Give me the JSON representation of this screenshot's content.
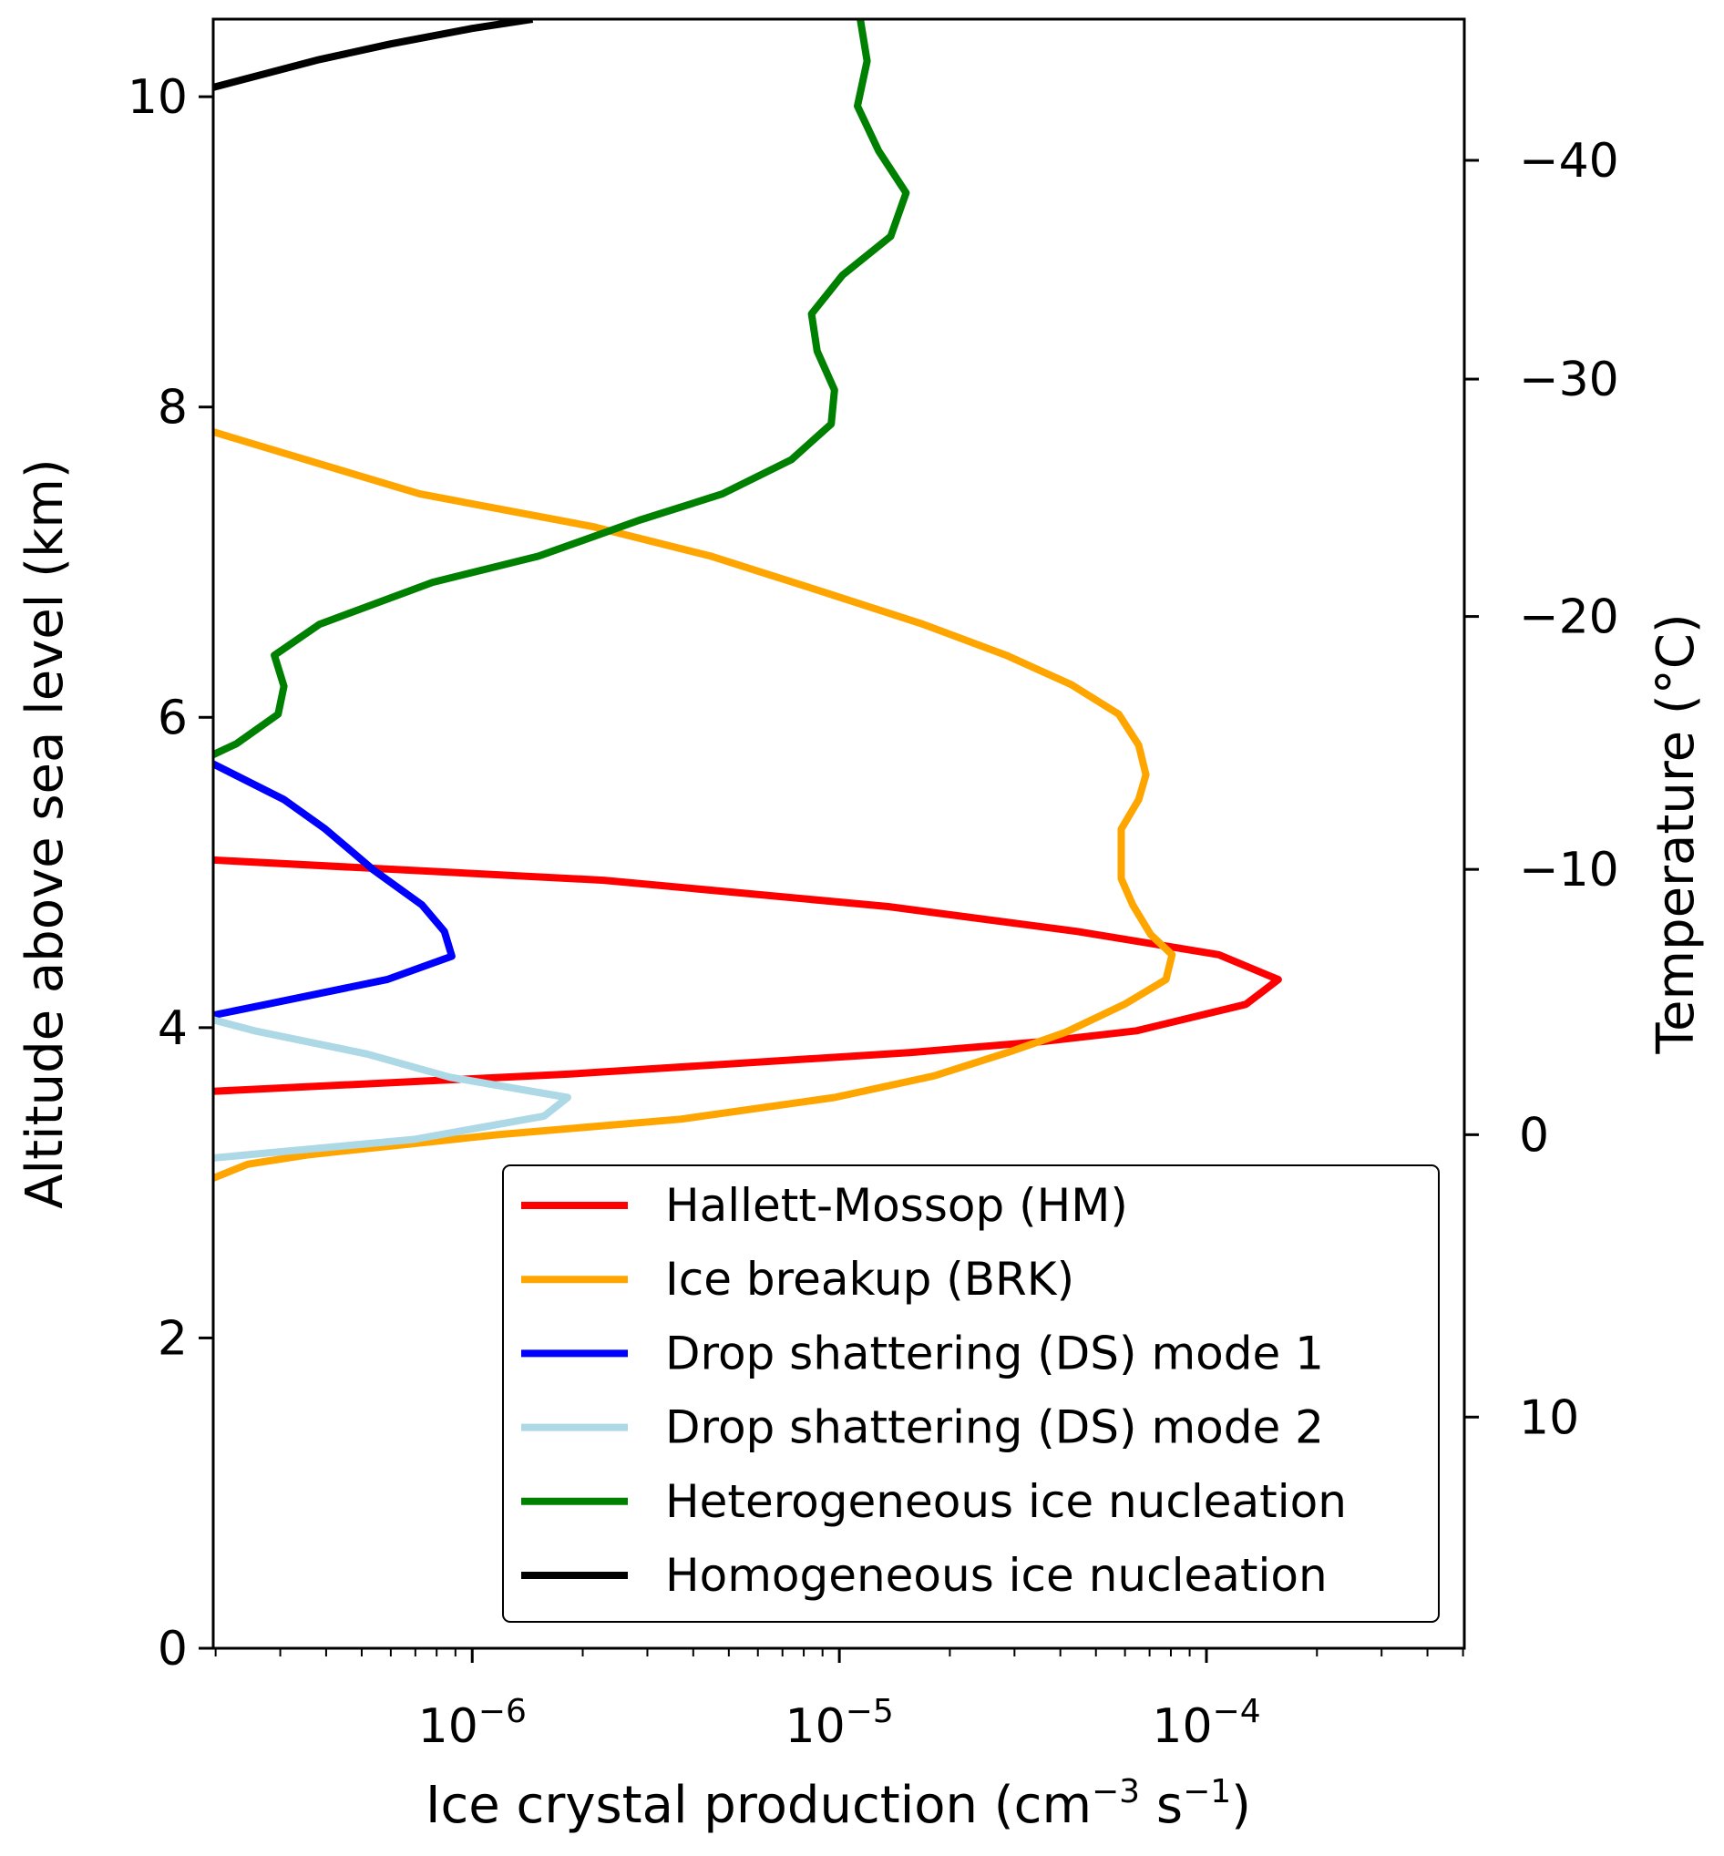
{
  "chart_data": {
    "type": "line",
    "xlabel": "Ice crystal production (cm",
    "xlabel_sup1": "−3",
    "xlabel_mid": " s",
    "xlabel_sup2": "−1",
    "xlabel_end": ")",
    "ylabel": "Altitude above sea level (km)",
    "y2label": "Temperature (°C)",
    "xscale": "log",
    "xlim": [
      1.97e-07,
      0.000504
    ],
    "ylim": [
      0,
      10.5
    ],
    "yticks": [
      0,
      2,
      4,
      6,
      8,
      10
    ],
    "ytick_labels": [
      "0",
      "2",
      "4",
      "6",
      "8",
      "10"
    ],
    "xticks": [
      1e-06,
      1e-05,
      0.0001
    ],
    "xtick_bases": [
      "10",
      "10",
      "10"
    ],
    "xtick_exps": [
      "−6",
      "−5",
      "−4"
    ],
    "y2ticks_altitude_km": [
      1.49,
      3.31,
      5.02,
      6.65,
      8.18,
      9.59
    ],
    "y2tick_labels": [
      "10",
      "0",
      "−10",
      "−20",
      "−30",
      "−40"
    ],
    "legend_position": "lower-right",
    "grid": false,
    "series": [
      {
        "name": "Hallett-Mossop (HM)",
        "color": "#ff0000",
        "points": [
          [
            1.97e-07,
            5.08
          ],
          [
            2.28e-06,
            4.95
          ],
          [
            1.36e-05,
            4.78
          ],
          [
            4.45e-05,
            4.62
          ],
          [
            0.000108,
            4.47
          ],
          [
            0.000157,
            4.31
          ],
          [
            0.000128,
            4.15
          ],
          [
            6.45e-05,
            3.98
          ],
          [
            3.56e-05,
            3.91
          ],
          [
            1.57e-05,
            3.84
          ],
          [
            1.82e-06,
            3.7
          ],
          [
            1.97e-07,
            3.59
          ]
        ]
      },
      {
        "name": "Ice breakup (BRK)",
        "color": "#ffa500",
        "points": [
          [
            1.97e-07,
            7.84
          ],
          [
            7.2e-07,
            7.44
          ],
          [
            2.12e-06,
            7.23
          ],
          [
            4.45e-06,
            7.04
          ],
          [
            9e-06,
            6.81
          ],
          [
            1.69e-05,
            6.6
          ],
          [
            2.85e-05,
            6.4
          ],
          [
            4.29e-05,
            6.21
          ],
          [
            5.77e-05,
            6.02
          ],
          [
            6.54e-05,
            5.82
          ],
          [
            6.84e-05,
            5.63
          ],
          [
            6.54e-05,
            5.47
          ],
          [
            5.86e-05,
            5.28
          ],
          [
            5.86e-05,
            4.96
          ],
          [
            6.3e-05,
            4.79
          ],
          [
            7.05e-05,
            4.6
          ],
          [
            8.06e-05,
            4.47
          ],
          [
            7.76e-05,
            4.31
          ],
          [
            5.98e-05,
            4.15
          ],
          [
            4.13e-05,
            3.97
          ],
          [
            2.96e-05,
            3.85
          ],
          [
            1.82e-05,
            3.69
          ],
          [
            9.7e-06,
            3.55
          ],
          [
            3.7e-06,
            3.41
          ],
          [
            1.17e-06,
            3.31
          ],
          [
            3.56e-07,
            3.18
          ],
          [
            2.45e-07,
            3.12
          ],
          [
            1.97e-07,
            3.03
          ]
        ]
      },
      {
        "name": "Drop shattering (DS) mode 1",
        "color": "#0000ff",
        "points": [
          [
            1.97e-07,
            5.7
          ],
          [
            3.07e-07,
            5.47
          ],
          [
            3.98e-07,
            5.28
          ],
          [
            5.36e-07,
            5.02
          ],
          [
            7.3e-07,
            4.79
          ],
          [
            8.4e-07,
            4.62
          ],
          [
            8.8e-07,
            4.46
          ],
          [
            5.86e-07,
            4.31
          ],
          [
            2.75e-07,
            4.15
          ],
          [
            1.97e-07,
            4.08
          ]
        ]
      },
      {
        "name": "Drop shattering (DS) mode 2",
        "color": "#add8e6",
        "points": [
          [
            1.97e-07,
            4.05
          ],
          [
            2.55e-07,
            3.98
          ],
          [
            5.17e-07,
            3.83
          ],
          [
            8.7e-07,
            3.68
          ],
          [
            1.82e-06,
            3.55
          ],
          [
            1.57e-06,
            3.43
          ],
          [
            6.95e-07,
            3.28
          ],
          [
            1.97e-07,
            3.16
          ]
        ]
      },
      {
        "name": "Heterogeneous ice nucleation",
        "color": "#008000",
        "points": [
          [
            1.97e-07,
            5.76
          ],
          [
            2.28e-07,
            5.83
          ],
          [
            2.96e-07,
            6.02
          ],
          [
            3.07e-07,
            6.2
          ],
          [
            2.89e-07,
            6.4
          ],
          [
            3.84e-07,
            6.6
          ],
          [
            7.8e-07,
            6.87
          ],
          [
            1.52e-06,
            7.04
          ],
          [
            2.85e-06,
            7.27
          ],
          [
            4.8e-06,
            7.44
          ],
          [
            7.4e-06,
            7.66
          ],
          [
            9.5e-06,
            7.89
          ],
          [
            9.7e-06,
            8.11
          ],
          [
            8.7e-06,
            8.36
          ],
          [
            8.4e-06,
            8.6
          ],
          [
            1.02e-05,
            8.85
          ],
          [
            1.38e-05,
            9.1
          ],
          [
            1.52e-05,
            9.38
          ],
          [
            1.28e-05,
            9.65
          ],
          [
            1.12e-05,
            9.94
          ],
          [
            1.19e-05,
            10.23
          ],
          [
            1.14e-05,
            10.5
          ]
        ]
      },
      {
        "name": "Homogeneous ice nucleation",
        "color": "#000000",
        "points": [
          [
            1.97e-07,
            10.06
          ],
          [
            3.84e-07,
            10.24
          ],
          [
            6e-07,
            10.34
          ],
          [
            1e-06,
            10.44
          ],
          [
            1.46e-06,
            10.5
          ]
        ]
      }
    ]
  }
}
